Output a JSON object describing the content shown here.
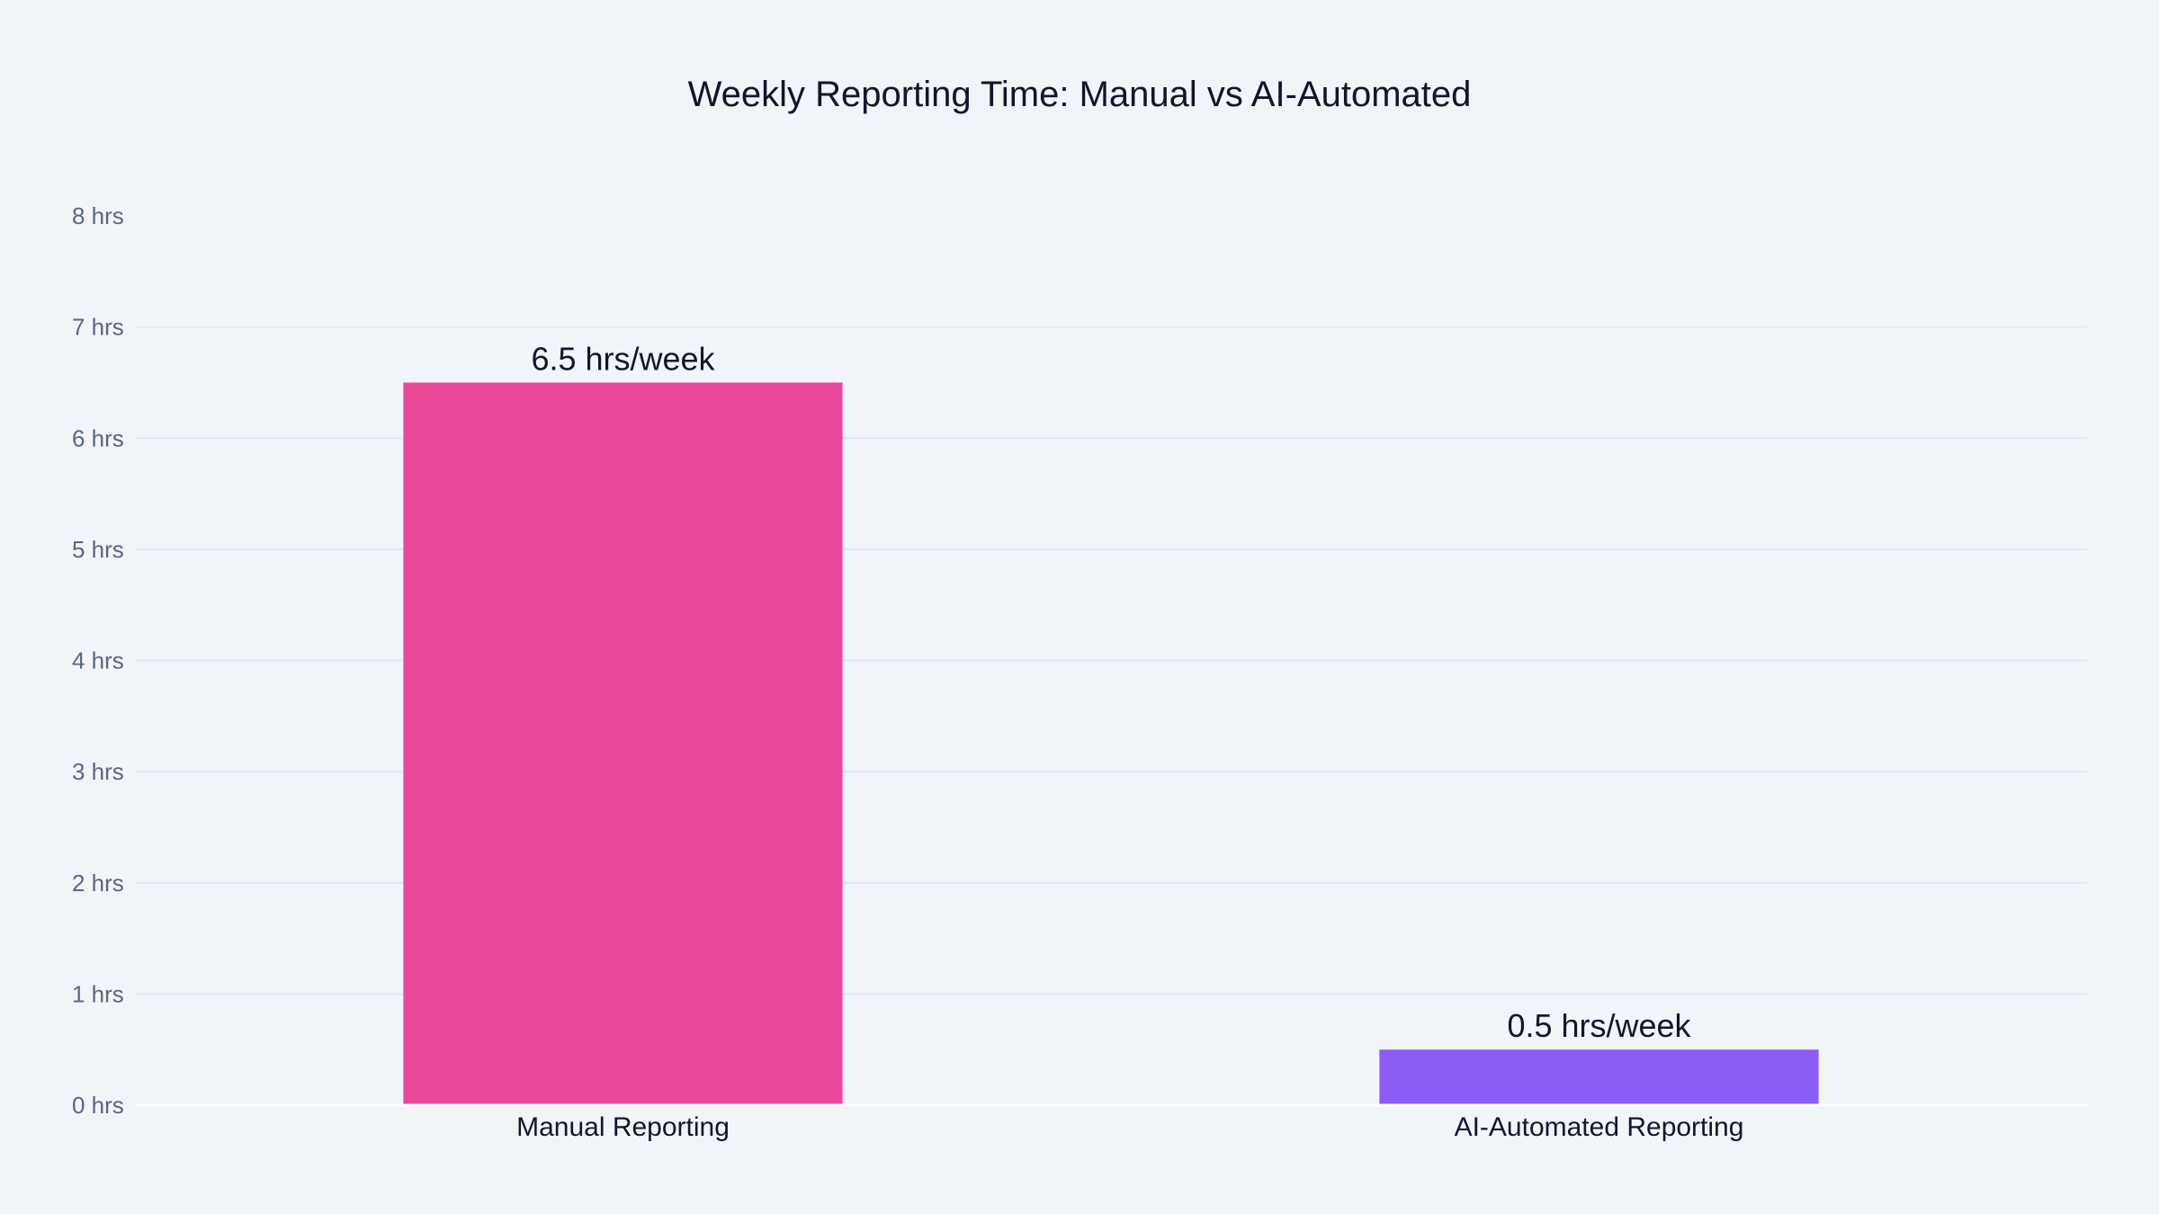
{
  "chart_data": {
    "type": "bar",
    "title": "Weekly Reporting Time: Manual vs AI-Automated",
    "xlabel": "",
    "ylabel": "",
    "categories": [
      "Manual Reporting",
      "AI-Automated Reporting"
    ],
    "values": [
      6.5,
      0.5
    ],
    "data_labels": [
      "6.5 hrs/week",
      "0.5 hrs/week"
    ],
    "colors": [
      "#ec4899",
      "#8b5cf6"
    ],
    "ylim": [
      0,
      8
    ],
    "yticks": [
      0,
      1,
      2,
      3,
      4,
      5,
      6,
      7,
      8
    ],
    "ytick_labels": [
      "0 hrs",
      "1 hrs",
      "2 hrs",
      "3 hrs",
      "4 hrs",
      "5 hrs",
      "6 hrs",
      "7 hrs",
      "8 hrs"
    ],
    "grid": true,
    "legend": "none"
  }
}
